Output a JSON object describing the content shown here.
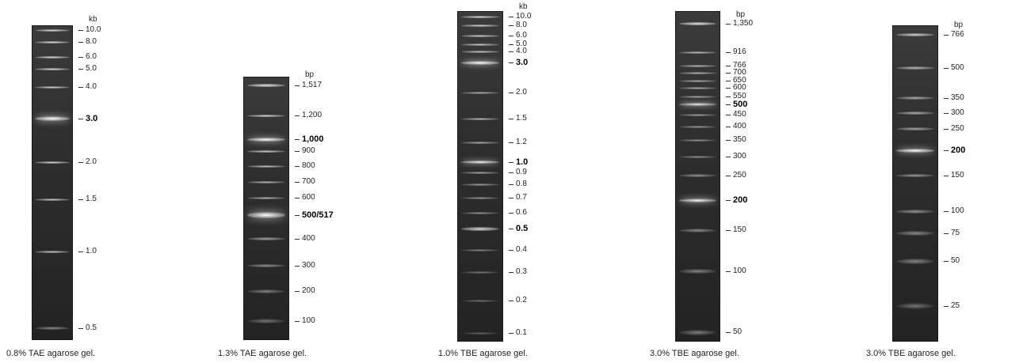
{
  "panels": [
    {
      "gel": "left:40px;top:32px;width:52px;height:398px;",
      "unit": "kb",
      "caption": "0.8% TAE agarose gel.",
      "markers": [
        {
          "label": "10.0",
          "y": 38,
          "b": 0.8,
          "h": 3
        },
        {
          "label": "8.0",
          "y": 53,
          "b": 0.8,
          "h": 3
        },
        {
          "label": "6.0",
          "y": 72,
          "b": 0.8,
          "h": 3
        },
        {
          "label": "5.0",
          "y": 87,
          "b": 0.8,
          "h": 3
        },
        {
          "label": "4.0",
          "y": 110,
          "b": 0.75,
          "h": 3
        },
        {
          "label": "3.0",
          "y": 150,
          "b": 1.0,
          "h": 6,
          "bold": true
        },
        {
          "label": "2.0",
          "y": 205,
          "b": 0.78,
          "h": 3
        },
        {
          "label": "1.5",
          "y": 252,
          "b": 0.72,
          "h": 3
        },
        {
          "label": "1.0",
          "y": 318,
          "b": 0.72,
          "h": 3
        },
        {
          "label": "0.5",
          "y": 415,
          "b": 0.38,
          "h": 4
        }
      ]
    },
    {
      "gel": "left:307px;top:97px;width:58px;height:333px;",
      "unit": "bp",
      "caption": "1.3% TAE agarose gel.",
      "markers": [
        {
          "label": "1,517",
          "y": 108,
          "b": 0.85,
          "h": 4
        },
        {
          "label": "1,200",
          "y": 146,
          "b": 0.78,
          "h": 3
        },
        {
          "label": "1,000",
          "y": 176,
          "b": 1.0,
          "h": 5,
          "bold": true
        },
        {
          "label": "900",
          "y": 191,
          "b": 0.72,
          "h": 3
        },
        {
          "label": "800",
          "y": 210,
          "b": 0.68,
          "h": 3
        },
        {
          "label": "700",
          "y": 230,
          "b": 0.62,
          "h": 3
        },
        {
          "label": "600",
          "y": 250,
          "b": 0.6,
          "h": 3
        },
        {
          "label": "500/517",
          "y": 272,
          "b": 1.0,
          "h": 8,
          "bold": true
        },
        {
          "label": "400",
          "y": 302,
          "b": 0.52,
          "h": 4
        },
        {
          "label": "300",
          "y": 336,
          "b": 0.42,
          "h": 4
        },
        {
          "label": "200",
          "y": 368,
          "b": 0.3,
          "h": 5
        },
        {
          "label": "100",
          "y": 406,
          "b": 0.22,
          "h": 6
        }
      ]
    },
    {
      "gel": "left:577px;top:14px;width:58px;height:418px;",
      "unit": "kb",
      "caption": "1.0% TBE agarose gel.",
      "markers": [
        {
          "label": "10.0",
          "y": 21,
          "b": 0.8,
          "h": 3
        },
        {
          "label": "8.0",
          "y": 32,
          "b": 0.75,
          "h": 3
        },
        {
          "label": "6.0",
          "y": 45,
          "b": 0.72,
          "h": 3
        },
        {
          "label": "5.0",
          "y": 56,
          "b": 0.7,
          "h": 3
        },
        {
          "label": "4.0",
          "y": 65,
          "b": 0.68,
          "h": 3
        },
        {
          "label": "3.0",
          "y": 79,
          "b": 1.0,
          "h": 5,
          "bold": true
        },
        {
          "label": "2.0",
          "y": 117,
          "b": 0.55,
          "h": 3
        },
        {
          "label": "1.5",
          "y": 150,
          "b": 0.62,
          "h": 3
        },
        {
          "label": "1.2",
          "y": 180,
          "b": 0.55,
          "h": 3
        },
        {
          "label": "1.0",
          "y": 205,
          "b": 0.95,
          "h": 4,
          "bold": true
        },
        {
          "label": "0.9",
          "y": 218,
          "b": 0.52,
          "h": 3
        },
        {
          "label": "0.8",
          "y": 233,
          "b": 0.48,
          "h": 3
        },
        {
          "label": "0.7",
          "y": 250,
          "b": 0.45,
          "h": 3
        },
        {
          "label": "0.6",
          "y": 269,
          "b": 0.42,
          "h": 3
        },
        {
          "label": "0.5",
          "y": 289,
          "b": 0.8,
          "h": 5,
          "bold": true
        },
        {
          "label": "0.4",
          "y": 316,
          "b": 0.35,
          "h": 3
        },
        {
          "label": "0.3",
          "y": 344,
          "b": 0.28,
          "h": 3
        },
        {
          "label": "0.2",
          "y": 380,
          "b": 0.22,
          "h": 3
        },
        {
          "label": "0.1",
          "y": 421,
          "b": 0.15,
          "h": 3
        }
      ]
    },
    {
      "gel": "left:852px;top:14px;width:57px;height:418px;",
      "unit": "bp",
      "caption": "3.0% TBE agarose gel.",
      "markers": [
        {
          "label": "1,350",
          "y": 30,
          "b": 0.85,
          "h": 4
        },
        {
          "label": "916",
          "y": 66,
          "b": 0.65,
          "h": 3
        },
        {
          "label": "766",
          "y": 83,
          "b": 0.62,
          "h": 3
        },
        {
          "label": "700",
          "y": 92,
          "b": 0.58,
          "h": 3
        },
        {
          "label": "650",
          "y": 102,
          "b": 0.55,
          "h": 3
        },
        {
          "label": "600",
          "y": 111,
          "b": 0.55,
          "h": 3
        },
        {
          "label": "550",
          "y": 122,
          "b": 0.52,
          "h": 3
        },
        {
          "label": "500",
          "y": 132,
          "b": 0.9,
          "h": 4,
          "bold": true
        },
        {
          "label": "450",
          "y": 145,
          "b": 0.48,
          "h": 3
        },
        {
          "label": "400",
          "y": 160,
          "b": 0.45,
          "h": 3
        },
        {
          "label": "350",
          "y": 177,
          "b": 0.42,
          "h": 3
        },
        {
          "label": "300",
          "y": 198,
          "b": 0.42,
          "h": 3
        },
        {
          "label": "250",
          "y": 222,
          "b": 0.4,
          "h": 4
        },
        {
          "label": "200",
          "y": 253,
          "b": 0.95,
          "h": 5,
          "bold": true
        },
        {
          "label": "150",
          "y": 291,
          "b": 0.35,
          "h": 5
        },
        {
          "label": "100",
          "y": 343,
          "b": 0.3,
          "h": 6
        },
        {
          "label": "50",
          "y": 420,
          "b": 0.25,
          "h": 7
        }
      ]
    },
    {
      "gel": "left:1126px;top:32px;width:58px;height:400px;",
      "unit": "bp",
      "caption": "3.0% TBE agarose gel.",
      "markers": [
        {
          "label": "766",
          "y": 44,
          "b": 0.75,
          "h": 4
        },
        {
          "label": "500",
          "y": 86,
          "b": 0.62,
          "h": 4
        },
        {
          "label": "350",
          "y": 124,
          "b": 0.55,
          "h": 4
        },
        {
          "label": "300",
          "y": 143,
          "b": 0.55,
          "h": 4
        },
        {
          "label": "250",
          "y": 163,
          "b": 0.52,
          "h": 4
        },
        {
          "label": "200",
          "y": 190,
          "b": 1.0,
          "h": 5,
          "bold": true
        },
        {
          "label": "150",
          "y": 222,
          "b": 0.45,
          "h": 4
        },
        {
          "label": "100",
          "y": 267,
          "b": 0.4,
          "h": 5
        },
        {
          "label": "75",
          "y": 295,
          "b": 0.35,
          "h": 6
        },
        {
          "label": "50",
          "y": 330,
          "b": 0.3,
          "h": 7
        },
        {
          "label": "25",
          "y": 387,
          "b": 0.18,
          "h": 8
        }
      ]
    }
  ]
}
